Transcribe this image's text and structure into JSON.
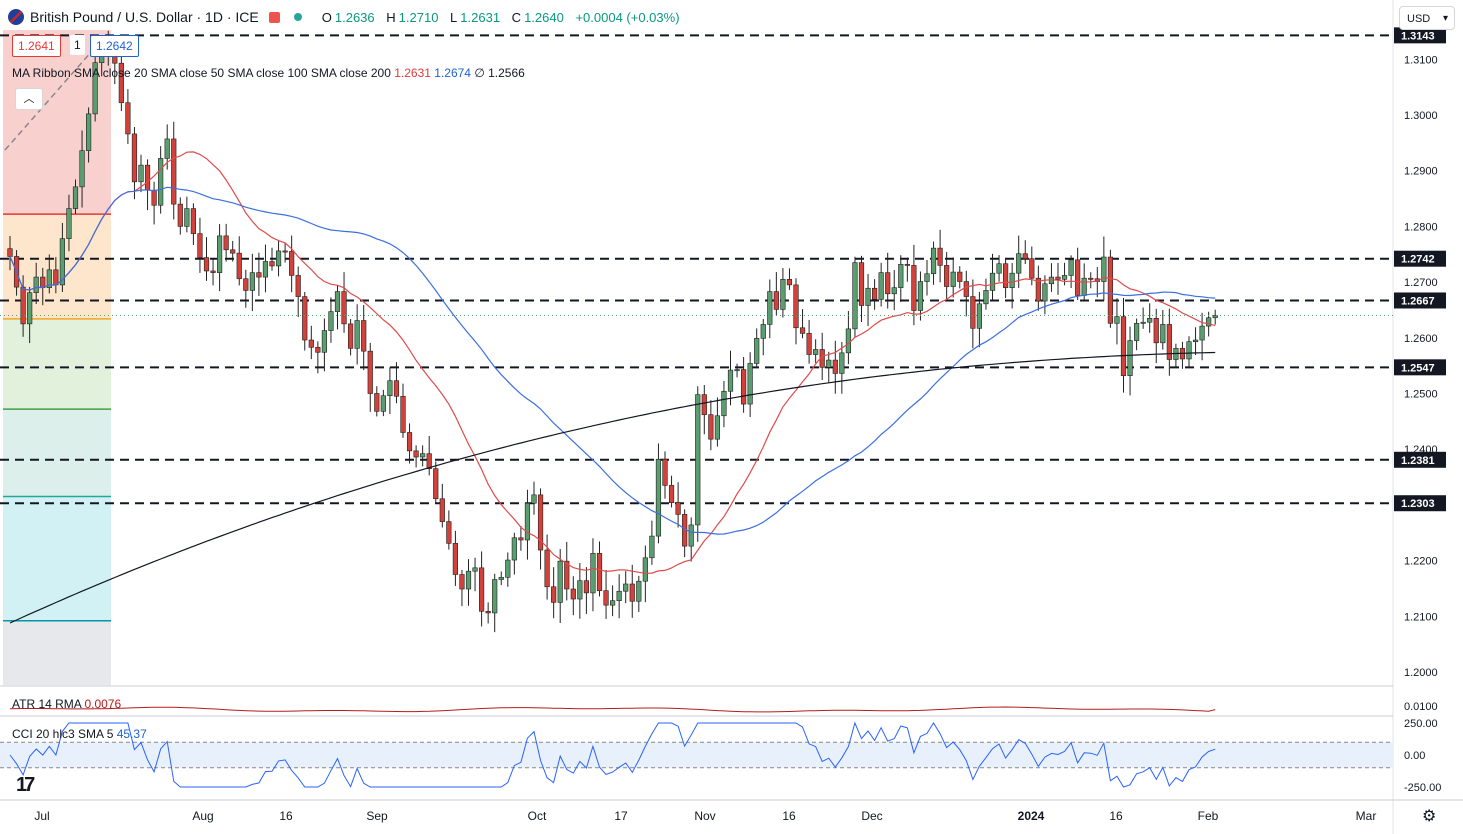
{
  "header": {
    "symbol": "British Pound / U.S. Dollar · 1D · ICE",
    "ohlc": {
      "o_label": "O",
      "o": "1.2636",
      "h_label": "H",
      "h": "1.2710",
      "l_label": "L",
      "l": "1.2631",
      "c_label": "C",
      "c": "1.2640",
      "chg": "+0.0004 (+0.03%)"
    },
    "bid": "1.2641",
    "spread": "1",
    "ask": "1.2642",
    "currency": "USD"
  },
  "ma_ribbon": {
    "label": "MA Ribbon SMA close 20 SMA close 50 SMA close 100 SMA close 200",
    "v1": "1.2631",
    "v2": "1.2674",
    "v3_prefix": "∅",
    "v3": "1.2566"
  },
  "atr": {
    "label": "ATR 14 RMA",
    "value": "0.0076"
  },
  "cci": {
    "label": "CCI 20 hlc3 SMA 5",
    "value": "45.37"
  },
  "colors": {
    "up": "#5a9e6f",
    "down": "#d2413a",
    "sma20": "#e04b4b",
    "sma50": "#3b6fe0",
    "sma200": "#131722"
  },
  "chart_data": {
    "type": "candlestick",
    "x_ticks": [
      "Jul",
      "Aug",
      "16",
      "Sep",
      "Oct",
      "17",
      "Nov",
      "16",
      "Dec",
      "2024",
      "16",
      "Feb",
      "Mar"
    ],
    "price_ticks": [
      "1.3143",
      "1.3100",
      "1.3000",
      "1.2900",
      "1.2800",
      "1.2742",
      "1.2700",
      "1.2667",
      "1.2600",
      "1.2547",
      "1.2500",
      "1.2400",
      "1.2381",
      "1.2303",
      "1.2200",
      "1.2100",
      "1.2000"
    ],
    "atr_ticks": [
      "0.0100"
    ],
    "cci_ticks": [
      "250.00",
      "0.00",
      "-250.00"
    ],
    "ylim": [
      1.193,
      1.3163
    ],
    "horizontal_levels": [
      1.3143,
      1.2742,
      1.2667,
      1.2547,
      1.2381,
      1.2303
    ],
    "fib_levels": [
      1.2822,
      1.2634,
      1.2472,
      1.2315,
      1.2092
    ],
    "closes": [
      1.2746,
      1.2691,
      1.2625,
      1.2681,
      1.2709,
      1.269,
      1.2722,
      1.2695,
      1.2778,
      1.2832,
      1.2871,
      1.2936,
      1.3002,
      1.3094,
      1.3123,
      1.3105,
      1.3093,
      1.3022,
      1.2966,
      1.288,
      1.291,
      1.2865,
      1.2838,
      1.2922,
      1.2957,
      1.284,
      1.28,
      1.2832,
      1.2787,
      1.2744,
      1.272,
      1.2717,
      1.2783,
      1.2758,
      1.2752,
      1.2706,
      1.2685,
      1.2717,
      1.2709,
      1.2737,
      1.2729,
      1.2756,
      1.2755,
      1.2712,
      1.2674,
      1.2596,
      1.2583,
      1.2574,
      1.2613,
      1.2647,
      1.2683,
      1.2625,
      1.2581,
      1.2631,
      1.2576,
      1.25,
      1.2468,
      1.2496,
      1.2523,
      1.2495,
      1.243,
      1.2397,
      1.2386,
      1.2392,
      1.2365,
      1.2311,
      1.227,
      1.2231,
      1.2175,
      1.2149,
      1.2181,
      1.2187,
      1.2109,
      1.2106,
      1.2166,
      1.217,
      1.2201,
      1.2241,
      1.2237,
      1.2303,
      1.2318,
      1.2219,
      1.2153,
      1.2125,
      1.2199,
      1.2149,
      1.2131,
      1.2164,
      1.2142,
      1.2213,
      1.2146,
      1.212,
      1.2128,
      1.2145,
      1.2158,
      1.2127,
      1.2163,
      1.2205,
      1.2244,
      1.2382,
      1.2335,
      1.2304,
      1.2283,
      1.2226,
      1.2264,
      1.2498,
      1.2462,
      1.2418,
      1.246,
      1.2504,
      1.2542,
      1.2543,
      1.2481,
      1.2554,
      1.2599,
      1.2624,
      1.2683,
      1.2651,
      1.2705,
      1.2695,
      1.2618,
      1.2608,
      1.257,
      1.2579,
      1.2547,
      1.256,
      1.2536,
      1.2573,
      1.2616,
      1.2735,
      1.2658,
      1.2689,
      1.2669,
      1.2717,
      1.2679,
      1.269,
      1.2732,
      1.273,
      1.2649,
      1.2701,
      1.2715,
      1.2761,
      1.273,
      1.2692,
      1.2718,
      1.2701,
      1.2674,
      1.2617,
      1.2661,
      1.2685,
      1.2716,
      1.2733,
      1.269,
      1.2716,
      1.2751,
      1.2742,
      1.2707,
      1.2666,
      1.2697,
      1.2709,
      1.2705,
      1.2712,
      1.274,
      1.2676,
      1.2707,
      1.2706,
      1.2701,
      1.2745,
      1.2626,
      1.2638,
      1.2532,
      1.2595,
      1.2626,
      1.2628,
      1.2635,
      1.2591,
      1.2624,
      1.2561,
      1.2581,
      1.2562,
      1.2593,
      1.2596,
      1.2621,
      1.2636,
      1.264
    ],
    "highs_est": "within 0.0040 above max(open,close)",
    "lows_est": "within 0.0040 below min(open,close)",
    "sma20_last": 1.2631,
    "sma50_last": 1.2674,
    "sma200_last": 1.2566,
    "atr_last": 0.0076,
    "cci_last": 45.37
  }
}
